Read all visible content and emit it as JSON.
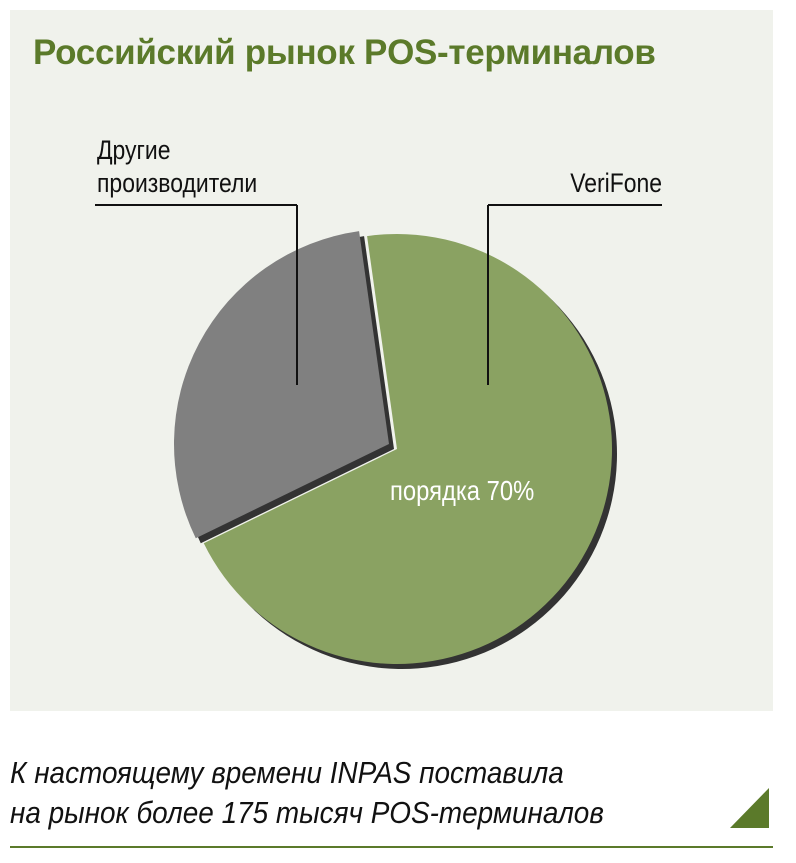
{
  "title": "Российский рынок POS-терминалов",
  "chart_data": {
    "type": "pie",
    "title": "Российский рынок POS-терминалов",
    "slices": [
      {
        "label": "VeriFone",
        "value": 70,
        "color": "#8aa262",
        "data_label": "порядка 70%"
      },
      {
        "label_lines": [
          "Другие",
          "производители"
        ],
        "value": 30,
        "color": "#808080"
      }
    ],
    "shadow_color": "#333333"
  },
  "footer": {
    "line1": "К настоящему времени INPAS поставила",
    "line2": "на рынок более 175 тысяч POS-терминалов"
  },
  "accent": "#5b7a2a",
  "panel_bg": "#f0f2ec"
}
